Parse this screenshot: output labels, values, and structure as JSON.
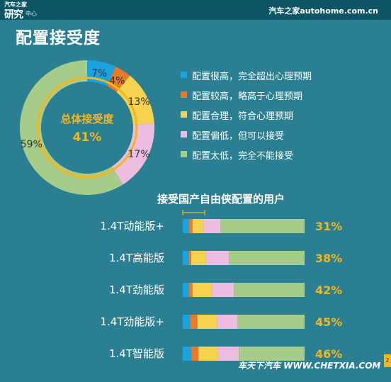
{
  "header": {
    "logo_line1": "汽车之家",
    "logo_line2": "研究",
    "logo_line3": "中心",
    "brand": "汽车之家autohome.com.cn"
  },
  "title": "配置接受度",
  "donut": {
    "center_label": "总体接受度",
    "center_value": "41%"
  },
  "legend": [
    {
      "label": "配置很高，完全超出心理预期",
      "color": "#1aa3e1"
    },
    {
      "label": "配置较高，略高于心理预期",
      "color": "#e5792c"
    },
    {
      "label": "配置合理，符合心理预期",
      "color": "#f7d24f"
    },
    {
      "label": "配置偏低，但可以接受",
      "color": "#ecbde0"
    },
    {
      "label": "配置太低，完全不能接受",
      "color": "#a6cc8a"
    }
  ],
  "subtitle": "接受国产自由侠配置的用户",
  "watermark": "车天下汽车 WWW.CHETXIA.COM",
  "page_number": "2",
  "chart_data": [
    {
      "type": "pie",
      "subtype": "donut",
      "categories": [
        "配置很高，完全超出心理预期",
        "配置较高，略高于心理预期",
        "配置合理，符合心理预期",
        "配置偏低，但可以接受",
        "配置太低，完全不能接受"
      ],
      "values": [
        7,
        4,
        13,
        17,
        59
      ],
      "labels": [
        "7%",
        "4%",
        "13%",
        "17%",
        "59%"
      ],
      "colors": [
        "#1aa3e1",
        "#e5792c",
        "#f7d24f",
        "#ecbde0",
        "#a6cc8a"
      ]
    },
    {
      "type": "bar",
      "orientation": "horizontal",
      "stacked": true,
      "title": "接受国产自由侠配置的用户",
      "categories": [
        "1.4T动能版+",
        "1.4T高能版",
        "1.4T劲能版",
        "1.4T劲能版+",
        "1.4T智能版"
      ],
      "series": [
        {
          "values": [
            5,
            5,
            5,
            6,
            7
          ],
          "color": "#1aa3e1"
        },
        {
          "values": [
            3,
            2,
            3,
            6,
            6
          ],
          "color": "#e5792c"
        },
        {
          "values": [
            9,
            12,
            16,
            16,
            16
          ],
          "color": "#f7d24f"
        },
        {
          "values": [
            14,
            19,
            18,
            17,
            17
          ],
          "color": "#ecbde0"
        },
        {
          "values": [
            69,
            62,
            58,
            55,
            54
          ],
          "color": "#a6cc8a"
        }
      ],
      "value_labels": [
        "31%",
        "38%",
        "42%",
        "45%",
        "46%"
      ],
      "value_label_color": "#f3b61f",
      "xlim": [
        0,
        100
      ]
    }
  ]
}
